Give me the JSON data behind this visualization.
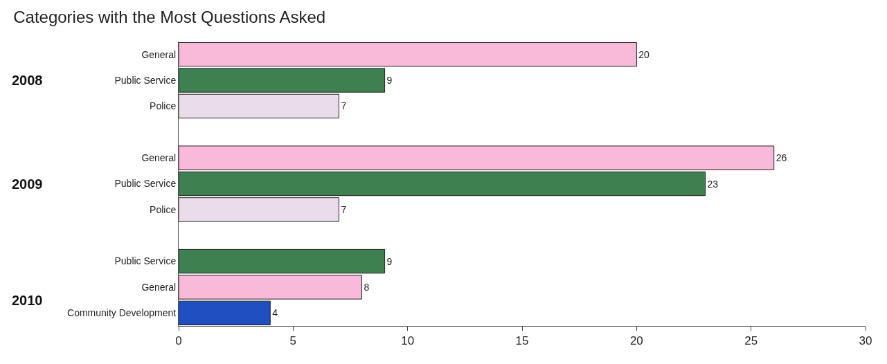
{
  "chart_data": {
    "type": "bar",
    "orientation": "horizontal",
    "title": "Categories with the Most Questions Asked",
    "categories": [
      "General",
      "Public Service",
      "Police",
      null,
      "General",
      "Public Service",
      "Police",
      null,
      "Public Service",
      "General",
      "Community Development"
    ],
    "values": [
      20,
      9,
      7,
      null,
      26,
      23,
      7,
      null,
      9,
      8,
      4
    ],
    "colors": [
      "#f9b9d9",
      "#3e8050",
      "#eadde9",
      null,
      "#f9b9d9",
      "#3e8050",
      "#eadde9",
      null,
      "#3e8050",
      "#f9b9d9",
      "#1f4fc0"
    ],
    "annotations": [
      "2008",
      "2009",
      "2010"
    ],
    "xlim": [
      0,
      30
    ],
    "xticks": [
      0,
      5,
      10,
      15,
      20,
      25,
      30
    ],
    "data_labels": true,
    "legend": false
  }
}
